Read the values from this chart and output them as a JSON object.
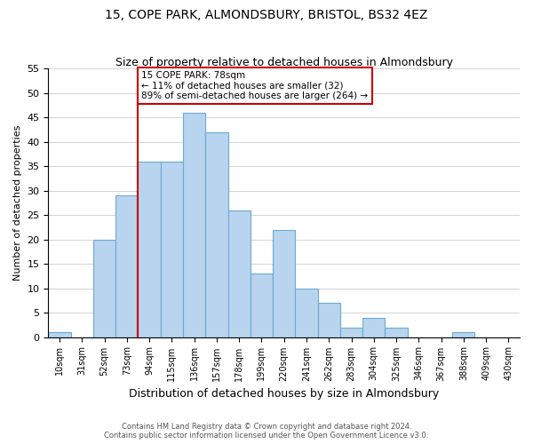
{
  "title": "15, COPE PARK, ALMONDSBURY, BRISTOL, BS32 4EZ",
  "subtitle": "Size of property relative to detached houses in Almondsbury",
  "xlabel": "Distribution of detached houses by size in Almondsbury",
  "ylabel": "Number of detached properties",
  "bin_labels": [
    "10sqm",
    "31sqm",
    "52sqm",
    "73sqm",
    "94sqm",
    "115sqm",
    "136sqm",
    "157sqm",
    "178sqm",
    "199sqm",
    "220sqm",
    "241sqm",
    "262sqm",
    "283sqm",
    "304sqm",
    "325sqm",
    "346sqm",
    "367sqm",
    "388sqm",
    "409sqm",
    "430sqm"
  ],
  "bar_values": [
    1,
    0,
    20,
    29,
    36,
    36,
    46,
    42,
    26,
    13,
    22,
    10,
    7,
    2,
    4,
    2,
    0,
    0,
    1,
    0,
    0
  ],
  "bar_color": "#b8d4ee",
  "bar_edge_color": "#6aaad4",
  "vline_color": "#cc0000",
  "vline_bin_after": 3,
  "annotation_title": "15 COPE PARK: 78sqm",
  "annotation_line1": "← 11% of detached houses are smaller (32)",
  "annotation_line2": "89% of semi-detached houses are larger (264) →",
  "annotation_box_color": "#ffffff",
  "annotation_box_edge": "#cc0000",
  "ylim": [
    0,
    55
  ],
  "yticks": [
    0,
    5,
    10,
    15,
    20,
    25,
    30,
    35,
    40,
    45,
    50,
    55
  ],
  "footer_line1": "Contains HM Land Registry data © Crown copyright and database right 2024.",
  "footer_line2": "Contains public sector information licensed under the Open Government Licence v3.0."
}
